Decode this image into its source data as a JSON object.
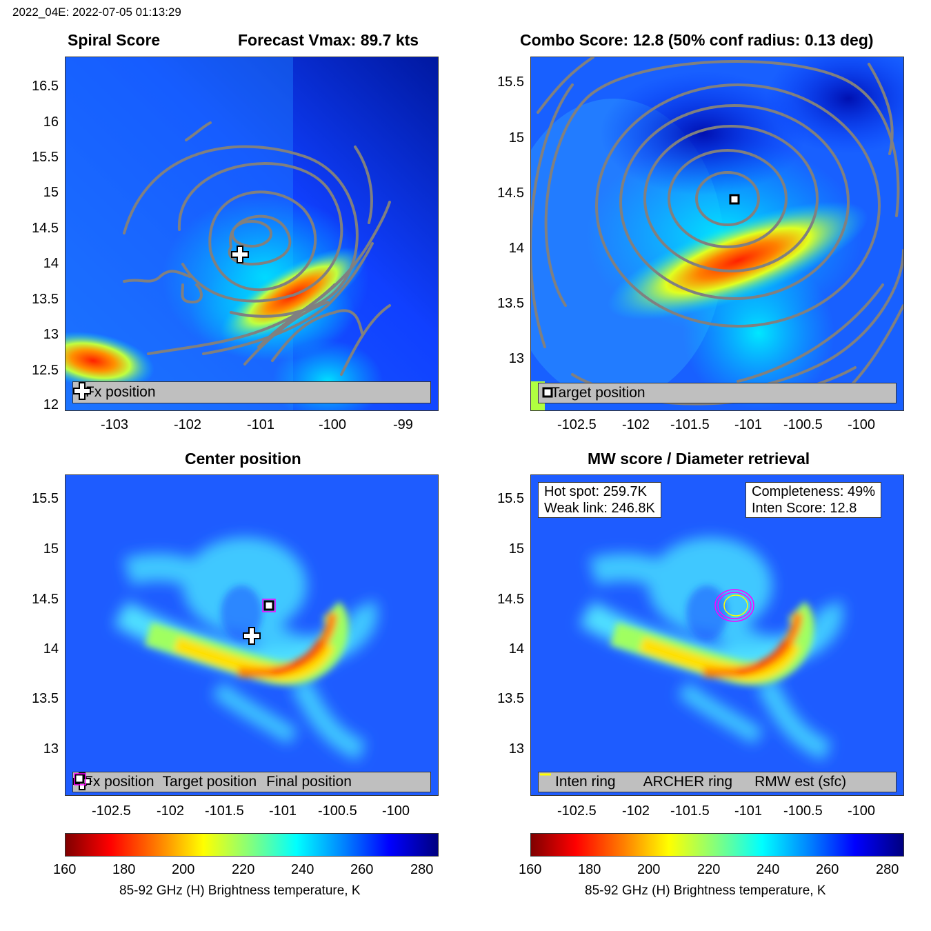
{
  "figure": {
    "supertitle": "2022_04E: 2022-07-05 01:13:29"
  },
  "panels": {
    "spiral": {
      "title_left": "Spiral Score",
      "title_right": "Forecast Vmax: 89.7 kts",
      "yticks": [
        "16.5",
        "16",
        "15.5",
        "15",
        "14.5",
        "14",
        "13.5",
        "13",
        "12.5",
        "12"
      ],
      "xticks": [
        "-103",
        "-102",
        "-101",
        "-100",
        "-99"
      ],
      "legend": [
        "Fx position"
      ]
    },
    "combo": {
      "title": "Combo Score: 12.8  (50% conf radius: 0.13 deg)",
      "yticks": [
        "15.5",
        "15",
        "14.5",
        "14",
        "13.5",
        "13"
      ],
      "xticks": [
        "-102.5",
        "-102",
        "-101.5",
        "-101",
        "-100.5",
        "-100"
      ],
      "legend": [
        "Target position"
      ]
    },
    "center": {
      "title": "Center position",
      "yticks": [
        "15.5",
        "15",
        "14.5",
        "14",
        "13.5",
        "13"
      ],
      "xticks": [
        "-102.5",
        "-102",
        "-101.5",
        "-101",
        "-100.5",
        "-100"
      ],
      "legend": [
        "Fx position",
        "Target position",
        "Final position"
      ]
    },
    "mw": {
      "title": "MW score / Diameter retrieval",
      "yticks": [
        "15.5",
        "15",
        "14.5",
        "14",
        "13.5",
        "13"
      ],
      "xticks": [
        "-102.5",
        "-102",
        "-101.5",
        "-101",
        "-100.5",
        "-100"
      ],
      "hot_spot": "Hot spot: 259.7K",
      "weak_link": "Weak link: 246.8K",
      "completeness": "Completeness: 49%",
      "inten_score": "Inten Score: 12.8",
      "legend": [
        "Inten ring",
        "ARCHER ring",
        "RMW est (sfc)"
      ]
    }
  },
  "colorbar": {
    "ticks": [
      "160",
      "180",
      "200",
      "220",
      "240",
      "260",
      "280"
    ],
    "label": "85-92 GHz (H) Brightness temperature, K",
    "range": [
      160,
      285
    ]
  },
  "colors": {
    "contour": "#808080",
    "legend_bg": "#bfbfbf",
    "archer": "#ff00ff",
    "rmw": "#ffff00",
    "inten": "#404040"
  },
  "chart_data": [
    {
      "type": "heatmap",
      "title": "Spiral Score",
      "subtitle": "Forecast Vmax: 89.7 kts",
      "xlim": [
        -103.7,
        -98.7
      ],
      "ylim": [
        12,
        16.9
      ],
      "markers": [
        {
          "name": "Fx position",
          "x": -101.3,
          "y": 14.15
        }
      ],
      "contours": "gray spiral score contours"
    },
    {
      "type": "heatmap",
      "title": "Combo Score: 12.8  (50% conf radius: 0.13 deg)",
      "xlim": [
        -102.95,
        -99.65
      ],
      "ylim": [
        12.55,
        15.8
      ],
      "markers": [
        {
          "name": "Target position",
          "x": -101.15,
          "y": 14.45
        }
      ],
      "contours": "gray concentric combo score contours"
    },
    {
      "type": "heatmap",
      "title": "Center position",
      "xlim": [
        -102.95,
        -99.65
      ],
      "ylim": [
        12.55,
        15.75
      ],
      "markers": [
        {
          "name": "Fx position",
          "x": -101.3,
          "y": 14.15
        },
        {
          "name": "Target position",
          "x": -101.15,
          "y": 14.45
        },
        {
          "name": "Final position",
          "x": -101.15,
          "y": 14.45
        }
      ]
    },
    {
      "type": "heatmap",
      "title": "MW score / Diameter retrieval",
      "xlim": [
        -102.95,
        -99.65
      ],
      "ylim": [
        12.55,
        15.75
      ],
      "rings": [
        {
          "name": "ARCHER ring",
          "x": -101.15,
          "y": 14.45
        },
        {
          "name": "RMW est (sfc)",
          "x": -101.15,
          "y": 14.45
        }
      ]
    }
  ]
}
